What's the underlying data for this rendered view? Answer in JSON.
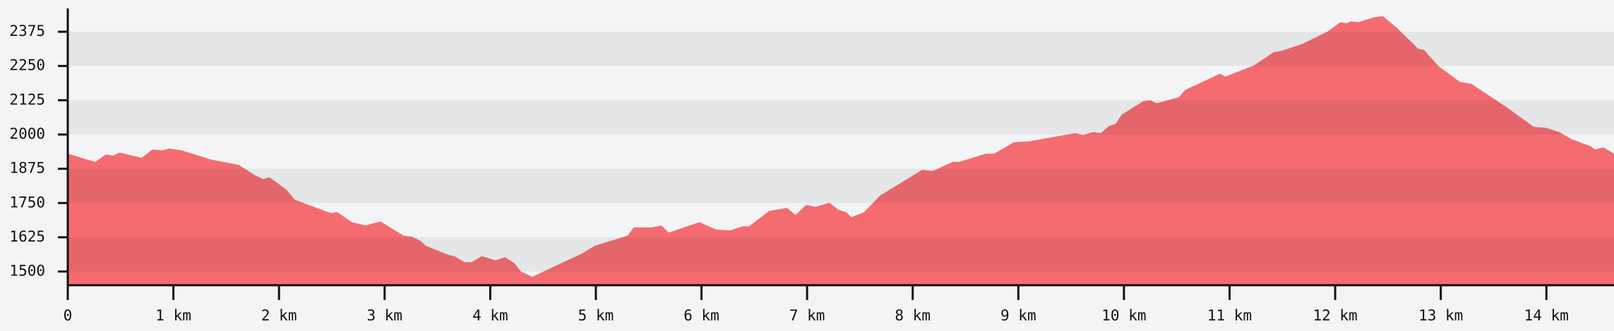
{
  "chart_data": {
    "type": "area",
    "color": "#f46c70",
    "x": [
      0,
      0.26,
      0.36,
      0.43,
      0.49,
      0.7,
      0.8,
      0.9,
      0.96,
      1.08,
      1.36,
      1.62,
      1.77,
      1.85,
      1.91,
      2.07,
      2.15,
      2.49,
      2.55,
      2.69,
      2.82,
      2.96,
      3.18,
      3.26,
      3.34,
      3.39,
      3.61,
      3.66,
      3.76,
      3.82,
      3.92,
      4.05,
      4.14,
      4.23,
      4.29,
      4.4,
      4.67,
      4.86,
      4.99,
      5.3,
      5.36,
      5.53,
      5.62,
      5.69,
      5.98,
      6.14,
      6.27,
      6.39,
      6.45,
      6.64,
      6.81,
      6.89,
      6.99,
      7.08,
      7.21,
      7.3,
      7.37,
      7.42,
      7.54,
      7.69,
      8.09,
      8.19,
      8.38,
      8.44,
      8.69,
      8.77,
      8.96,
      9.1,
      9.54,
      9.61,
      9.71,
      9.78,
      9.86,
      9.92,
      9.98,
      10.18,
      10.25,
      10.31,
      10.52,
      10.58,
      10.91,
      10.96,
      11.23,
      11.42,
      11.49,
      11.69,
      11.93,
      12.05,
      12.11,
      12.15,
      12.22,
      12.37,
      12.45,
      12.58,
      12.79,
      12.84,
      12.98,
      13.18,
      13.29,
      13.64,
      13.88,
      14.0,
      14.12,
      14.24,
      14.42,
      14.46,
      14.54,
      14.64
    ],
    "values": [
      1930,
      1900,
      1927,
      1923,
      1934,
      1915,
      1945,
      1942,
      1949,
      1942,
      1908,
      1889,
      1852,
      1837,
      1844,
      1799,
      1762,
      1713,
      1717,
      1680,
      1668,
      1683,
      1631,
      1627,
      1612,
      1594,
      1560,
      1556,
      1534,
      1534,
      1556,
      1541,
      1552,
      1530,
      1500,
      1481,
      1530,
      1564,
      1594,
      1631,
      1661,
      1661,
      1668,
      1642,
      1680,
      1653,
      1650,
      1665,
      1665,
      1721,
      1732,
      1706,
      1743,
      1736,
      1751,
      1725,
      1717,
      1698,
      1717,
      1777,
      1871,
      1867,
      1900,
      1900,
      1930,
      1930,
      1972,
      1975,
      2005,
      1998,
      2009,
      2005,
      2031,
      2039,
      2073,
      2121,
      2125,
      2114,
      2136,
      2163,
      2222,
      2211,
      2252,
      2301,
      2305,
      2331,
      2376,
      2410,
      2406,
      2413,
      2410,
      2428,
      2432,
      2391,
      2312,
      2309,
      2249,
      2192,
      2185,
      2095,
      2028,
      2024,
      2009,
      1983,
      1957,
      1945,
      1953,
      1930
    ],
    "xlim": [
      0,
      14.64
    ],
    "ylim": [
      1450,
      2460
    ],
    "xticks": [
      0,
      {
        "value": 1,
        "label": "1 km"
      },
      {
        "value": 2,
        "label": "2 km"
      },
      {
        "value": 3,
        "label": "3 km"
      },
      {
        "value": 4,
        "label": "4 km"
      },
      {
        "value": 5,
        "label": "5 km"
      },
      {
        "value": 6,
        "label": "6 km"
      },
      {
        "value": 7,
        "label": "7 km"
      },
      {
        "value": 8,
        "label": "8 km"
      },
      {
        "value": 9,
        "label": "9 km"
      },
      {
        "value": 10,
        "label": "10 km"
      },
      {
        "value": 11,
        "label": "11 km"
      },
      {
        "value": 12,
        "label": "12 km"
      },
      {
        "value": 13,
        "label": "13 km"
      },
      {
        "value": 14,
        "label": "14 km"
      }
    ],
    "yticks": [
      1500,
      1625,
      1750,
      1875,
      2000,
      2125,
      2250,
      2375
    ],
    "grid": true
  }
}
